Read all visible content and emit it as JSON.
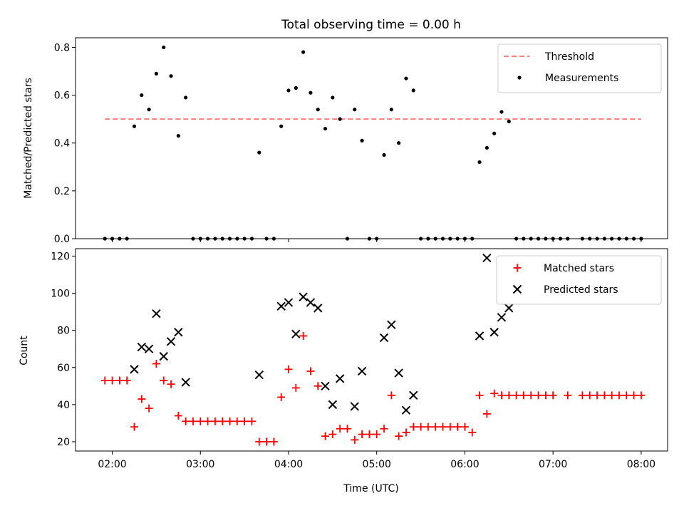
{
  "title": "Total observing time = 0.00 h",
  "chart_data": [
    {
      "type": "scatter",
      "ylabel": "Matched/Predicted stars",
      "ylim": [
        0,
        0.84
      ],
      "yticks": [
        "0.0",
        "0.2",
        "0.4",
        "0.6",
        "0.8"
      ],
      "ytick_values": [
        0,
        0.2,
        0.4,
        0.6,
        0.8
      ],
      "xlim": [
        "01:35",
        "08:18"
      ],
      "legend_position": "upper-right",
      "threshold": {
        "name": "Threshold",
        "y": 0.5,
        "x_start": "01:55",
        "x_end": "08:00",
        "color": "#ff7f7f"
      },
      "measurements": {
        "name": "Measurements",
        "color": "#000000",
        "points": [
          [
            "01:55",
            0.0
          ],
          [
            "02:00",
            0.0
          ],
          [
            "02:05",
            0.0
          ],
          [
            "02:10",
            0.0
          ],
          [
            "02:15",
            0.47
          ],
          [
            "02:20",
            0.6
          ],
          [
            "02:25",
            0.54
          ],
          [
            "02:30",
            0.69
          ],
          [
            "02:35",
            0.8
          ],
          [
            "02:40",
            0.68
          ],
          [
            "02:45",
            0.43
          ],
          [
            "02:50",
            0.59
          ],
          [
            "02:55",
            0.0
          ],
          [
            "03:00",
            0.0
          ],
          [
            "03:05",
            0.0
          ],
          [
            "03:10",
            0.0
          ],
          [
            "03:15",
            0.0
          ],
          [
            "03:20",
            0.0
          ],
          [
            "03:25",
            0.0
          ],
          [
            "03:30",
            0.0
          ],
          [
            "03:35",
            0.0
          ],
          [
            "03:40",
            0.36
          ],
          [
            "03:45",
            0.0
          ],
          [
            "03:50",
            0.0
          ],
          [
            "03:55",
            0.47
          ],
          [
            "04:00",
            0.62
          ],
          [
            "04:05",
            0.63
          ],
          [
            "04:10",
            0.78
          ],
          [
            "04:15",
            0.61
          ],
          [
            "04:20",
            0.54
          ],
          [
            "04:25",
            0.46
          ],
          [
            "04:30",
            0.59
          ],
          [
            "04:35",
            0.5
          ],
          [
            "04:40",
            0.0
          ],
          [
            "04:45",
            0.54
          ],
          [
            "04:50",
            0.41
          ],
          [
            "04:55",
            0.0
          ],
          [
            "05:00",
            0.0
          ],
          [
            "05:05",
            0.35
          ],
          [
            "05:10",
            0.54
          ],
          [
            "05:15",
            0.4
          ],
          [
            "05:20",
            0.67
          ],
          [
            "05:25",
            0.62
          ],
          [
            "05:30",
            0.0
          ],
          [
            "05:35",
            0.0
          ],
          [
            "05:40",
            0.0
          ],
          [
            "05:45",
            0.0
          ],
          [
            "05:50",
            0.0
          ],
          [
            "05:55",
            0.0
          ],
          [
            "06:00",
            0.0
          ],
          [
            "06:05",
            0.0
          ],
          [
            "06:10",
            0.32
          ],
          [
            "06:15",
            0.38
          ],
          [
            "06:20",
            0.44
          ],
          [
            "06:25",
            0.53
          ],
          [
            "06:30",
            0.49
          ],
          [
            "06:35",
            0.0
          ],
          [
            "06:40",
            0.0
          ],
          [
            "06:45",
            0.0
          ],
          [
            "06:50",
            0.0
          ],
          [
            "06:55",
            0.0
          ],
          [
            "07:00",
            0.0
          ],
          [
            "07:05",
            0.0
          ],
          [
            "07:10",
            0.0
          ],
          [
            "07:20",
            0.0
          ],
          [
            "07:25",
            0.0
          ],
          [
            "07:30",
            0.0
          ],
          [
            "07:35",
            0.0
          ],
          [
            "07:40",
            0.0
          ],
          [
            "07:45",
            0.0
          ],
          [
            "07:50",
            0.0
          ],
          [
            "07:55",
            0.0
          ],
          [
            "08:00",
            0.0
          ]
        ]
      }
    },
    {
      "type": "scatter",
      "xlabel": "Time (UTC)",
      "ylabel": "Count",
      "ylim": [
        15,
        124
      ],
      "yticks": [
        "20",
        "40",
        "60",
        "80",
        "100",
        "120"
      ],
      "ytick_values": [
        20,
        40,
        60,
        80,
        100,
        120
      ],
      "xlim": [
        "01:35",
        "08:18"
      ],
      "xticks": [
        "02:00",
        "03:00",
        "04:00",
        "05:00",
        "06:00",
        "07:00",
        "08:00"
      ],
      "legend_position": "upper-right",
      "series": [
        {
          "name": "Matched stars",
          "marker": "plus",
          "color": "#ff0000",
          "points": [
            [
              "01:55",
              53
            ],
            [
              "02:00",
              53
            ],
            [
              "02:05",
              53
            ],
            [
              "02:10",
              53
            ],
            [
              "02:15",
              28
            ],
            [
              "02:20",
              43
            ],
            [
              "02:25",
              38
            ],
            [
              "02:30",
              62
            ],
            [
              "02:35",
              53
            ],
            [
              "02:40",
              51
            ],
            [
              "02:45",
              34
            ],
            [
              "02:50",
              31
            ],
            [
              "02:55",
              31
            ],
            [
              "03:00",
              31
            ],
            [
              "03:05",
              31
            ],
            [
              "03:10",
              31
            ],
            [
              "03:15",
              31
            ],
            [
              "03:20",
              31
            ],
            [
              "03:25",
              31
            ],
            [
              "03:30",
              31
            ],
            [
              "03:35",
              31
            ],
            [
              "03:40",
              20
            ],
            [
              "03:45",
              20
            ],
            [
              "03:50",
              20
            ],
            [
              "03:55",
              44
            ],
            [
              "04:00",
              59
            ],
            [
              "04:05",
              49
            ],
            [
              "04:10",
              77
            ],
            [
              "04:15",
              58
            ],
            [
              "04:20",
              50
            ],
            [
              "04:25",
              23
            ],
            [
              "04:30",
              24
            ],
            [
              "04:35",
              27
            ],
            [
              "04:40",
              27
            ],
            [
              "04:45",
              21
            ],
            [
              "04:50",
              24
            ],
            [
              "04:55",
              24
            ],
            [
              "05:00",
              24
            ],
            [
              "05:05",
              27
            ],
            [
              "05:10",
              45
            ],
            [
              "05:15",
              23
            ],
            [
              "05:20",
              25
            ],
            [
              "05:25",
              28
            ],
            [
              "05:30",
              28
            ],
            [
              "05:35",
              28
            ],
            [
              "05:40",
              28
            ],
            [
              "05:45",
              28
            ],
            [
              "05:50",
              28
            ],
            [
              "05:55",
              28
            ],
            [
              "06:00",
              28
            ],
            [
              "06:05",
              25
            ],
            [
              "06:10",
              45
            ],
            [
              "06:15",
              35
            ],
            [
              "06:20",
              46
            ],
            [
              "06:25",
              45
            ],
            [
              "06:30",
              45
            ],
            [
              "06:35",
              45
            ],
            [
              "06:40",
              45
            ],
            [
              "06:45",
              45
            ],
            [
              "06:50",
              45
            ],
            [
              "06:55",
              45
            ],
            [
              "07:00",
              45
            ],
            [
              "07:10",
              45
            ],
            [
              "07:20",
              45
            ],
            [
              "07:25",
              45
            ],
            [
              "07:30",
              45
            ],
            [
              "07:35",
              45
            ],
            [
              "07:40",
              45
            ],
            [
              "07:45",
              45
            ],
            [
              "07:50",
              45
            ],
            [
              "07:55",
              45
            ],
            [
              "08:00",
              45
            ]
          ]
        },
        {
          "name": "Predicted stars",
          "marker": "x",
          "color": "#000000",
          "points": [
            [
              "02:15",
              59
            ],
            [
              "02:20",
              71
            ],
            [
              "02:25",
              70
            ],
            [
              "02:30",
              89
            ],
            [
              "02:35",
              66
            ],
            [
              "02:40",
              74
            ],
            [
              "02:45",
              79
            ],
            [
              "02:50",
              52
            ],
            [
              "03:40",
              56
            ],
            [
              "03:55",
              93
            ],
            [
              "04:00",
              95
            ],
            [
              "04:05",
              78
            ],
            [
              "04:10",
              98
            ],
            [
              "04:15",
              95
            ],
            [
              "04:20",
              92
            ],
            [
              "04:25",
              50
            ],
            [
              "04:30",
              40
            ],
            [
              "04:35",
              54
            ],
            [
              "04:45",
              39
            ],
            [
              "04:50",
              58
            ],
            [
              "05:05",
              76
            ],
            [
              "05:10",
              83
            ],
            [
              "05:15",
              57
            ],
            [
              "05:20",
              37
            ],
            [
              "05:25",
              45
            ],
            [
              "06:10",
              77
            ],
            [
              "06:15",
              119
            ],
            [
              "06:20",
              79
            ],
            [
              "06:25",
              87
            ],
            [
              "06:30",
              92
            ]
          ]
        }
      ]
    }
  ]
}
